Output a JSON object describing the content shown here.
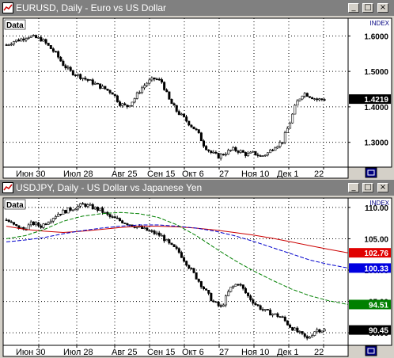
{
  "windows": [
    {
      "id": "eurusd",
      "title": "EURUSD, Daily - Euro vs US Dollar",
      "data_label": "Data",
      "index_label": "INDEX",
      "price_labels": [
        "1.6000",
        "1.5000",
        "1.4000",
        "1.3000"
      ],
      "current_price": "1.4219",
      "date_labels": [
        "Июн 30",
        "Июл 28",
        "Авг 25",
        "Сен 15",
        "Окт 6",
        "27",
        "Ноя 10",
        "Дек 1",
        "22"
      ],
      "colors": {
        "candle": "#000000",
        "current_bg": "#000000",
        "current_fg": "#ffffff"
      }
    },
    {
      "id": "usdjpy",
      "title": "USDJPY, Daily - US Dollar vs Japanese Yen",
      "data_label": "Data",
      "index_label": "INDEX",
      "price_labels": [
        "110.00",
        "105.00",
        "100.00",
        "95.00",
        "90.00"
      ],
      "current_price": "90.45",
      "ma_labels": [
        {
          "value": "102.76",
          "color": "#e00000"
        },
        {
          "value": "100.33",
          "color": "#0000e0"
        },
        {
          "value": "94.51",
          "color": "#008000"
        }
      ],
      "date_labels": [
        "Июн 30",
        "Июл 28",
        "Авг 25",
        "Сен 15",
        "Окт 6",
        "27",
        "Ноя 10",
        "Дек 1",
        "22"
      ],
      "colors": {
        "candle": "#000000",
        "ma_red": "#cc0000",
        "ma_blue": "#0000cc",
        "ma_green": "#008000"
      }
    }
  ],
  "window_buttons": {
    "minimize": "_",
    "maximize": "□",
    "close": "×"
  },
  "chart_data": [
    {
      "type": "candlestick",
      "symbol": "EURUSD",
      "timeframe": "Daily",
      "ylim": [
        1.23,
        1.65
      ],
      "close_path": [
        1.575,
        1.585,
        1.59,
        1.6,
        1.595,
        1.59,
        1.57,
        1.55,
        1.52,
        1.5,
        1.49,
        1.48,
        1.47,
        1.46,
        1.45,
        1.44,
        1.41,
        1.4,
        1.42,
        1.45,
        1.47,
        1.48,
        1.47,
        1.42,
        1.39,
        1.37,
        1.35,
        1.33,
        1.29,
        1.27,
        1.26,
        1.27,
        1.28,
        1.275,
        1.265,
        1.27,
        1.26,
        1.27,
        1.29,
        1.3,
        1.35,
        1.41,
        1.44,
        1.43,
        1.42,
        1.4219
      ],
      "current": 1.4219
    },
    {
      "type": "candlestick",
      "symbol": "USDJPY",
      "timeframe": "Daily",
      "ylim": [
        88,
        111.5
      ],
      "close_path": [
        108,
        107,
        106.5,
        107.5,
        107,
        108,
        109,
        109.5,
        110,
        110.5,
        110,
        109.5,
        108.5,
        108,
        107.5,
        107,
        106.5,
        106,
        105.5,
        104,
        103,
        101,
        99,
        97,
        95,
        94,
        97,
        98,
        96,
        94.5,
        93.5,
        93,
        92.5,
        91,
        90,
        89,
        90.5,
        90.45
      ],
      "current": 90.45,
      "moving_averages": [
        {
          "name": "red",
          "value": 102.76
        },
        {
          "name": "blue",
          "value": 100.33
        },
        {
          "name": "green",
          "value": 94.51
        }
      ]
    }
  ]
}
